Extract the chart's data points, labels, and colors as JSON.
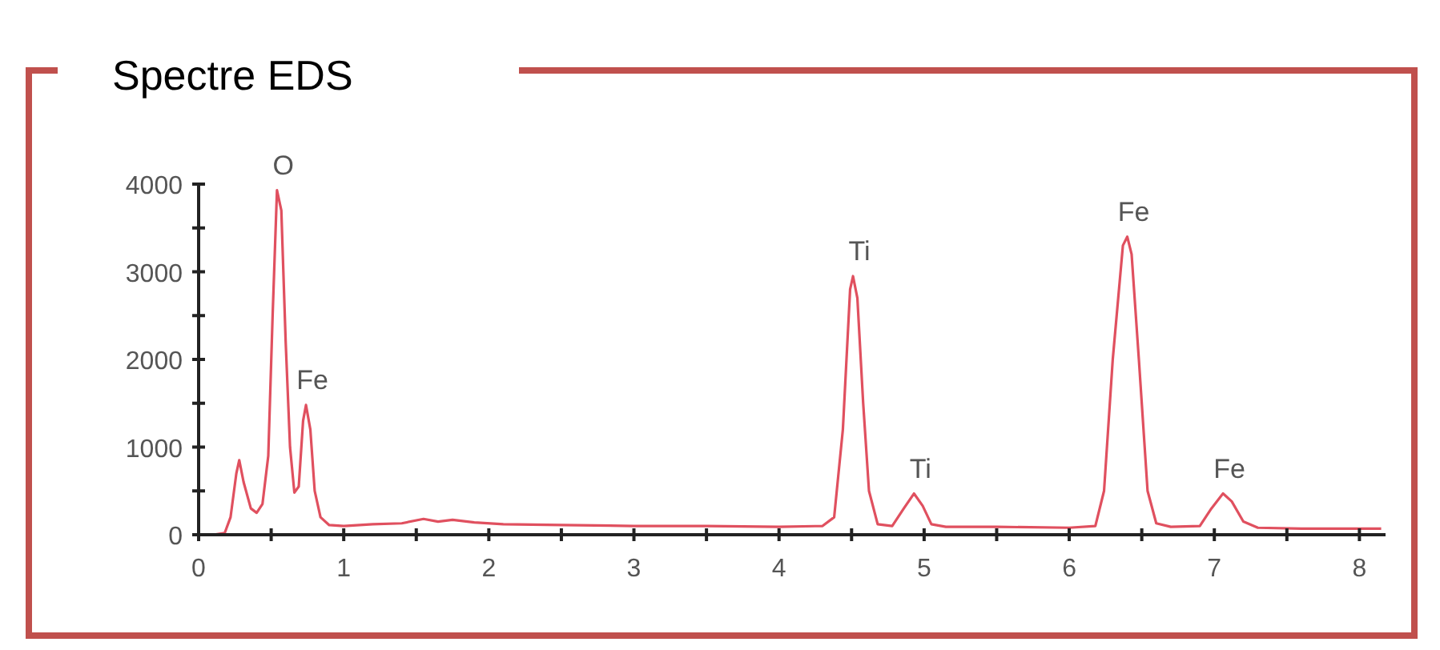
{
  "chart_data": {
    "type": "line",
    "title": "Spectre EDS",
    "x": [
      0,
      0.1,
      0.18,
      0.22,
      0.26,
      0.28,
      0.31,
      0.36,
      0.4,
      0.44,
      0.48,
      0.51,
      0.54,
      0.57,
      0.6,
      0.63,
      0.66,
      0.69,
      0.72,
      0.74,
      0.77,
      0.8,
      0.84,
      0.9,
      1.0,
      1.2,
      1.4,
      1.55,
      1.65,
      1.75,
      1.9,
      2.1,
      2.5,
      3.0,
      3.5,
      4.0,
      4.3,
      4.38,
      4.44,
      4.49,
      4.51,
      4.54,
      4.58,
      4.62,
      4.68,
      4.78,
      4.86,
      4.93,
      4.99,
      5.05,
      5.15,
      5.5,
      6.0,
      6.18,
      6.24,
      6.3,
      6.37,
      6.4,
      6.43,
      6.48,
      6.54,
      6.6,
      6.7,
      6.9,
      6.98,
      7.06,
      7.12,
      7.2,
      7.3,
      7.6,
      8.0,
      8.15
    ],
    "series": [
      {
        "color": "#e0505f",
        "values": [
          0,
          0,
          20,
          200,
          700,
          850,
          600,
          300,
          250,
          350,
          900,
          2500,
          3930,
          3700,
          2200,
          1000,
          480,
          550,
          1300,
          1480,
          1200,
          500,
          200,
          110,
          100,
          120,
          130,
          180,
          150,
          170,
          140,
          120,
          110,
          100,
          100,
          90,
          100,
          200,
          1200,
          2800,
          2950,
          2700,
          1500,
          500,
          120,
          100,
          300,
          470,
          330,
          120,
          90,
          90,
          80,
          100,
          500,
          2000,
          3300,
          3400,
          3200,
          2000,
          500,
          130,
          90,
          100,
          300,
          470,
          380,
          150,
          80,
          70,
          70,
          70
        ]
      }
    ],
    "xlim": [
      0,
      8.18
    ],
    "xticks": [
      0,
      {
        "value": 0.5,
        "label": null
      },
      1,
      {
        "value": 1.5,
        "label": null
      },
      2,
      {
        "value": 2.5,
        "label": null
      },
      3,
      {
        "value": 3.5,
        "label": null
      },
      4,
      {
        "value": 4.5,
        "label": null
      },
      5,
      {
        "value": 5.5,
        "label": null
      },
      6,
      {
        "value": 6.5,
        "label": null
      },
      7,
      {
        "value": 7.5,
        "label": null
      },
      8
    ],
    "ylim": [
      0,
      4000
    ],
    "yticks": [
      0,
      {
        "value": 500,
        "label": null
      },
      1000,
      {
        "value": 1500,
        "label": null
      },
      2000,
      {
        "value": 2500,
        "label": null
      },
      3000,
      {
        "value": 3500,
        "label": null
      },
      4000
    ],
    "grid": false,
    "marker": "none",
    "line_style": "solid",
    "annotations": [
      {
        "text": "O",
        "x": 0.54,
        "y": 3930
      },
      {
        "text": "Fe",
        "x": 0.74,
        "y": 1480
      },
      {
        "text": "Ti",
        "x": 4.51,
        "y": 2950
      },
      {
        "text": "Ti",
        "x": 4.93,
        "y": 470
      },
      {
        "text": "Fe",
        "x": 6.4,
        "y": 3400
      },
      {
        "text": "Fe",
        "x": 7.06,
        "y": 470
      }
    ]
  }
}
